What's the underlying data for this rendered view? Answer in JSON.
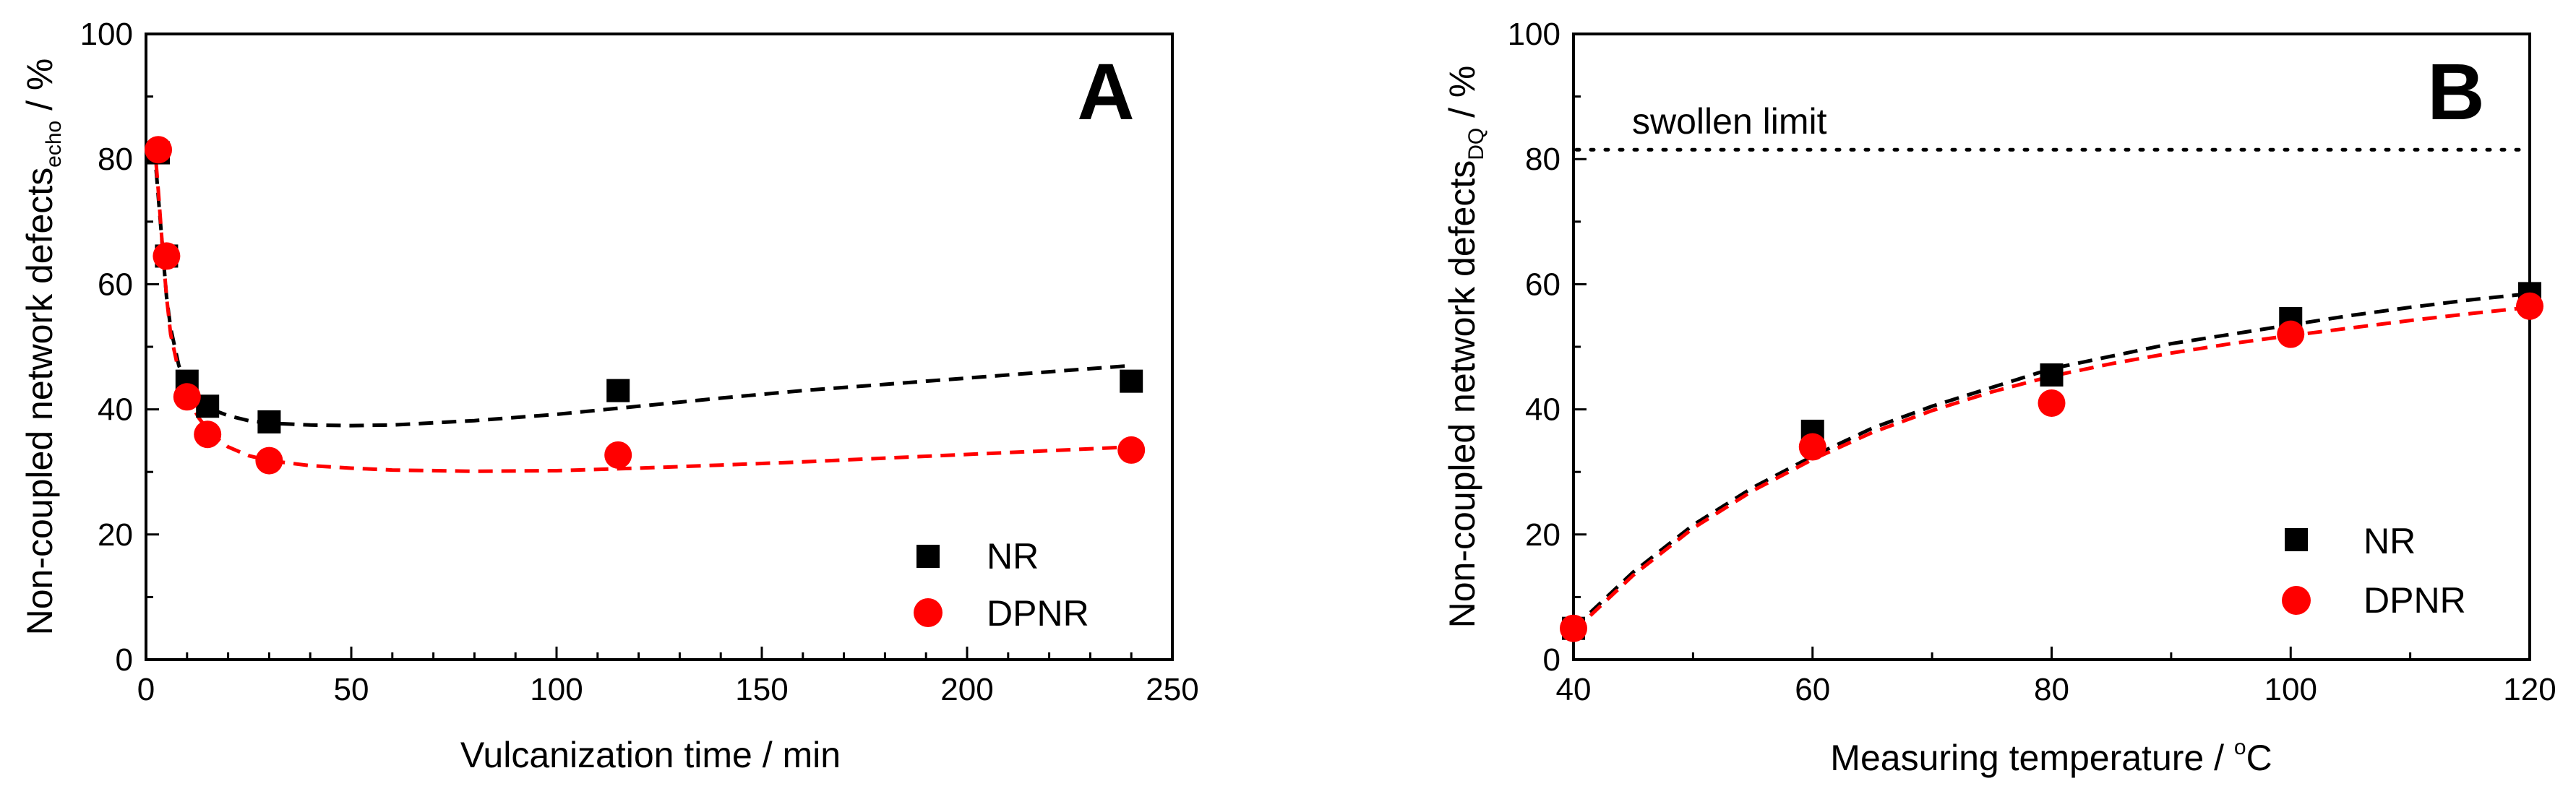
{
  "chart_data": [
    {
      "type": "scatter",
      "panel_label": "A",
      "xlabel": "Vulcanization time / min",
      "ylabel_main": "Non-coupled network defects",
      "ylabel_sub": "echo",
      "ylabel_unit": " / %",
      "xlim": [
        0,
        250
      ],
      "ylim": [
        0,
        100
      ],
      "xticks": [
        0,
        50,
        100,
        150,
        200,
        250
      ],
      "yticks": [
        0,
        20,
        40,
        60,
        80,
        100
      ],
      "legend_position": "bottom-right",
      "series": [
        {
          "name": "NR",
          "marker": "square",
          "color": "#000000",
          "x": [
            3,
            5,
            10,
            15,
            30,
            115,
            240
          ],
          "y": [
            81,
            64.5,
            44.5,
            40.5,
            38,
            43,
            44.5
          ],
          "fit_x": [
            2,
            3,
            4,
            5,
            6,
            8,
            10,
            13,
            16,
            20,
            25,
            30,
            40,
            50,
            60,
            80,
            100,
            120,
            140,
            160,
            180,
            200,
            220,
            240
          ],
          "fit_y": [
            82,
            74,
            66,
            58,
            53,
            47,
            44,
            41.5,
            40,
            39,
            38.2,
            37.8,
            37.5,
            37.4,
            37.5,
            38.2,
            39.2,
            40.5,
            41.8,
            43,
            44,
            45,
            46,
            47
          ]
        },
        {
          "name": "DPNR",
          "marker": "circle",
          "color": "#ff0000",
          "x": [
            3,
            5,
            10,
            15,
            30,
            115,
            240
          ],
          "y": [
            81.5,
            64.5,
            42,
            36,
            31.8,
            32.7,
            33.5
          ],
          "fit_x": [
            2,
            3,
            4,
            5,
            6,
            8,
            10,
            13,
            16,
            20,
            25,
            30,
            40,
            50,
            60,
            80,
            100,
            120,
            140,
            160,
            180,
            200,
            220,
            240
          ],
          "fit_y": [
            83,
            75,
            66,
            58,
            52,
            46,
            42,
            38.5,
            36,
            34,
            32.6,
            31.8,
            31,
            30.6,
            30.3,
            30.1,
            30.2,
            30.6,
            31.1,
            31.6,
            32.2,
            32.8,
            33.4,
            34
          ]
        }
      ]
    },
    {
      "type": "scatter",
      "panel_label": "B",
      "xlabel_main": "Measuring temperature / ",
      "xlabel_sup": "o",
      "xlabel_end": "C",
      "ylabel_main": "Non-coupled network defects",
      "ylabel_sub": "DQ",
      "ylabel_unit": " / %",
      "xlim": [
        40,
        120
      ],
      "ylim": [
        0,
        100
      ],
      "xticks": [
        40,
        60,
        80,
        100,
        120
      ],
      "yticks": [
        0,
        20,
        40,
        60,
        80,
        100
      ],
      "legend_position": "bottom-right",
      "reference_line": {
        "label": "swollen limit",
        "y": 81.5
      },
      "series": [
        {
          "name": "NR",
          "marker": "square",
          "color": "#000000",
          "x": [
            40,
            60,
            80,
            100,
            120
          ],
          "y": [
            5,
            36.5,
            45.5,
            54.5,
            58.5
          ],
          "fit_x": [
            40,
            45,
            50,
            55,
            60,
            65,
            70,
            75,
            80,
            85,
            90,
            95,
            100,
            105,
            110,
            115,
            120
          ],
          "fit_y": [
            5,
            14,
            21.5,
            27.5,
            32.5,
            37,
            40.5,
            43.5,
            46.5,
            48.5,
            50.5,
            52,
            53.5,
            55,
            56.3,
            57.5,
            58.5
          ]
        },
        {
          "name": "DPNR",
          "marker": "circle",
          "color": "#ff0000",
          "x": [
            40,
            60,
            80,
            100,
            120
          ],
          "y": [
            5,
            34,
            41,
            52,
            56.5
          ],
          "fit_x": [
            40,
            45,
            50,
            55,
            60,
            65,
            70,
            75,
            80,
            85,
            90,
            95,
            100,
            105,
            110,
            115,
            120
          ],
          "fit_y": [
            4.5,
            13.5,
            21,
            27,
            32,
            36.3,
            39.8,
            42.8,
            45.3,
            47.3,
            49,
            50.5,
            51.8,
            53,
            54.2,
            55.3,
            56.3
          ]
        }
      ]
    }
  ]
}
